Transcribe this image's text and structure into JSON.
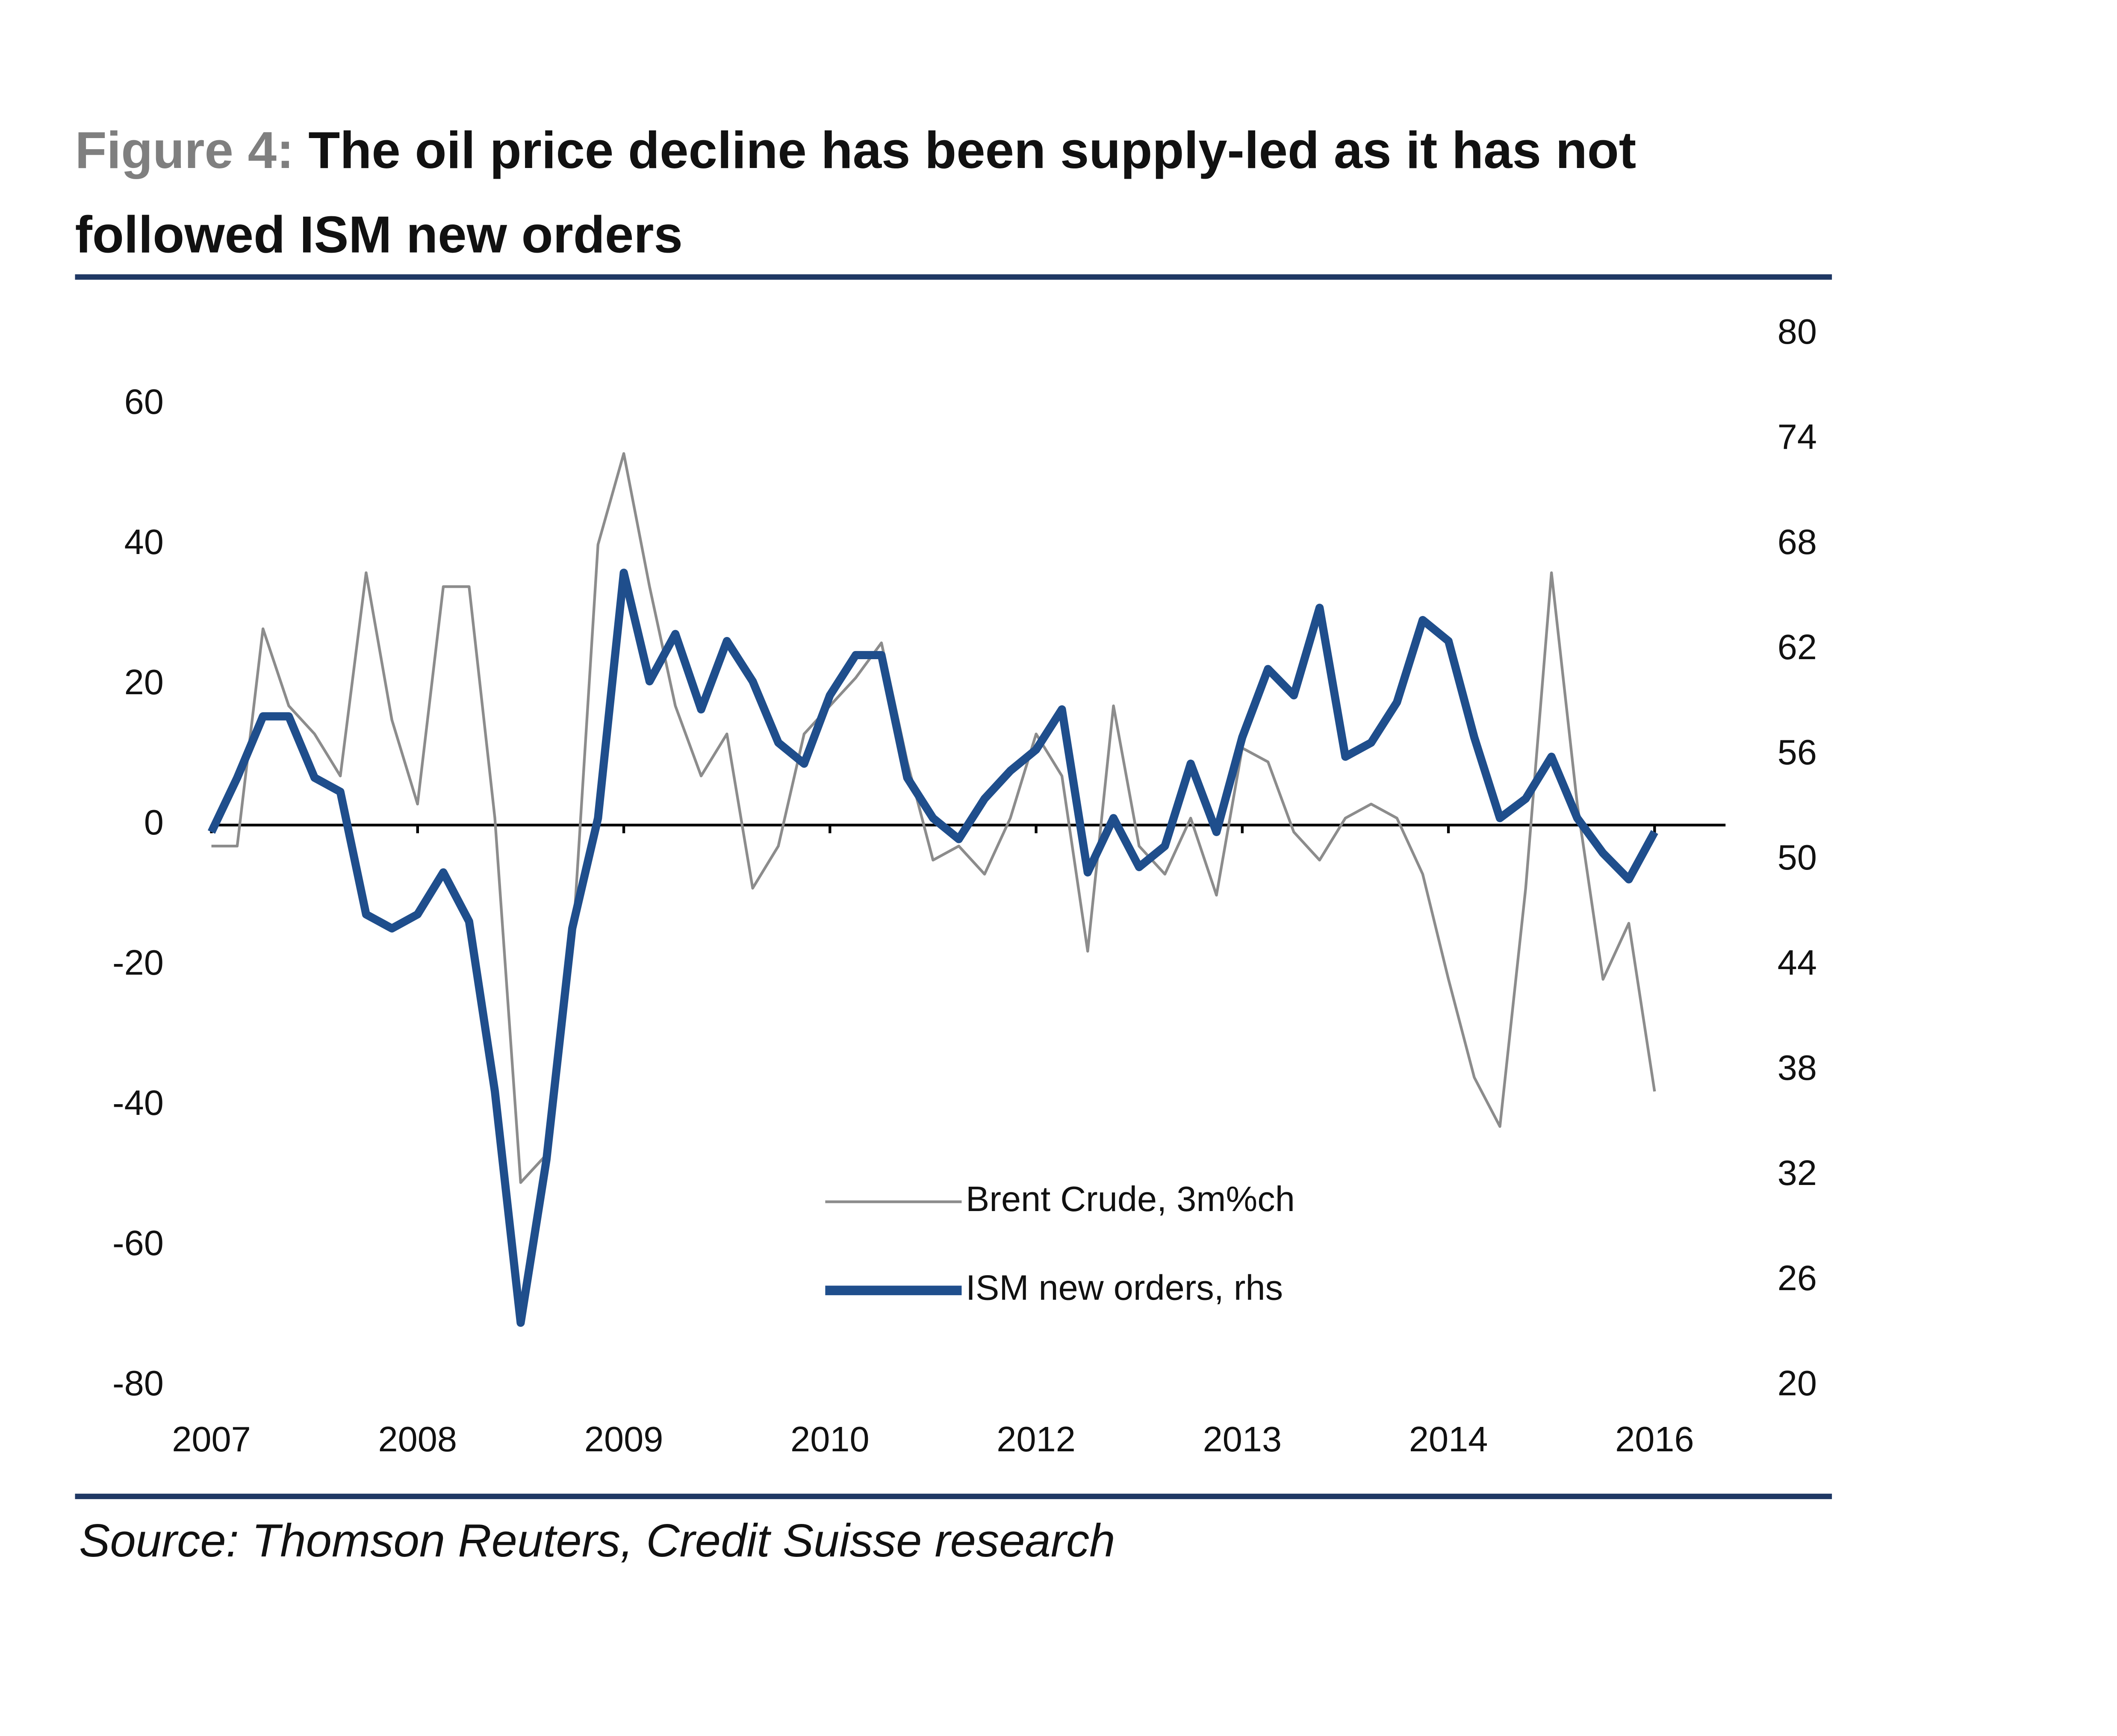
{
  "chart_data": {
    "type": "line",
    "figure_label": "Figure 4:",
    "title": "The oil price decline has been supply-led as it has not followed ISM new orders",
    "source": "Source: Thomson Reuters, Credit Suisse research",
    "categories": [
      "2007",
      null,
      null,
      null,
      null,
      null,
      null,
      null,
      "2008",
      null,
      null,
      null,
      null,
      null,
      null,
      null,
      "2009",
      null,
      null,
      null,
      null,
      null,
      null,
      null,
      "2010",
      null,
      null,
      null,
      null,
      null,
      null,
      null,
      "2012",
      null,
      null,
      null,
      null,
      null,
      null,
      null,
      "2013",
      null,
      null,
      null,
      null,
      null,
      null,
      null,
      "2014",
      null,
      null,
      null,
      null,
      null,
      null,
      null,
      "2016"
    ],
    "series": [
      {
        "name": "Brent Crude, 3m%ch",
        "color": "#8c8c8c",
        "axis": "y",
        "values": [
          -3,
          -3,
          28,
          17,
          13,
          7,
          36,
          15,
          3,
          34,
          34,
          1,
          -51,
          -47,
          -18,
          40,
          53,
          34,
          17,
          7,
          13,
          -9,
          -3,
          13,
          17,
          21,
          26,
          9,
          -5,
          -3,
          -7,
          1,
          13,
          7,
          -18,
          17,
          -3,
          -7,
          1,
          -10,
          11,
          9,
          -1,
          -5,
          1,
          3,
          1,
          -7,
          -22,
          -36,
          -43,
          -9,
          36,
          3,
          -22,
          -14,
          -38
        ]
      },
      {
        "name": "ISM new orders, rhs",
        "color": "#1f4e8c",
        "axis": "y2",
        "values": [
          51.6,
          54.7,
          58.2,
          58.2,
          54.7,
          53.9,
          46.9,
          46.1,
          46.9,
          49.3,
          46.5,
          36.8,
          23.6,
          32.9,
          46.1,
          52.4,
          66.4,
          60.2,
          62.9,
          58.6,
          62.5,
          60.2,
          56.7,
          55.5,
          59.4,
          61.7,
          61.7,
          54.7,
          52.4,
          51.2,
          53.5,
          55.1,
          56.3,
          58.6,
          49.3,
          52.4,
          49.6,
          50.8,
          55.5,
          51.6,
          57.0,
          60.9,
          59.4,
          64.4,
          55.9,
          56.7,
          59.0,
          63.7,
          62.5,
          57.0,
          52.4,
          53.5,
          55.9,
          52.4,
          50.4,
          48.9,
          51.6
        ]
      }
    ],
    "ylim": [
      -80,
      70
    ],
    "yticks": [
      -80,
      -60,
      -40,
      -20,
      0,
      20,
      40,
      60
    ],
    "y2lim": [
      20,
      80
    ],
    "y2ticks": [
      20,
      26,
      32,
      38,
      44,
      50,
      56,
      62,
      68,
      74,
      80
    ]
  }
}
